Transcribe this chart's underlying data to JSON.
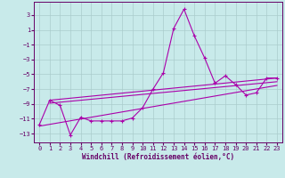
{
  "bg_color": "#c8eaea",
  "grid_color": "#aacccc",
  "line_color": "#aa00aa",
  "xlabel": "Windchill (Refroidissement éolien,°C)",
  "xlim": [
    -0.5,
    23.5
  ],
  "ylim": [
    -14.2,
    4.8
  ],
  "yticks": [
    3,
    1,
    -1,
    -3,
    -5,
    -7,
    -9,
    -11,
    -13
  ],
  "xticks": [
    0,
    1,
    2,
    3,
    4,
    5,
    6,
    7,
    8,
    9,
    10,
    11,
    12,
    13,
    14,
    15,
    16,
    17,
    18,
    19,
    20,
    21,
    22,
    23
  ],
  "main_x": [
    0,
    1,
    2,
    3,
    4,
    5,
    6,
    7,
    8,
    9,
    10,
    11,
    12,
    13,
    14,
    15,
    16,
    17,
    18,
    19,
    20,
    21,
    22,
    23
  ],
  "main_y": [
    -11.8,
    -8.5,
    -9.2,
    -13.2,
    -10.8,
    -11.3,
    -11.3,
    -11.3,
    -11.3,
    -10.9,
    -9.5,
    -7.0,
    -4.8,
    1.2,
    3.8,
    0.2,
    -2.8,
    -6.2,
    -5.2,
    -6.4,
    -7.8,
    -7.5,
    -5.5,
    -5.5
  ],
  "trend_lines": [
    {
      "x": [
        1,
        23
      ],
      "y": [
        -8.5,
        -5.5
      ]
    },
    {
      "x": [
        1,
        23
      ],
      "y": [
        -8.9,
        -6.0
      ]
    },
    {
      "x": [
        0,
        23
      ],
      "y": [
        -12.0,
        -6.5
      ]
    }
  ]
}
